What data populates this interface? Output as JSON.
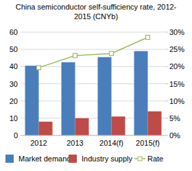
{
  "chart_data": {
    "type": "bar",
    "title": "China semiconductor self-sufficiency rate, 2012-2015 (CNYb)",
    "categories": [
      "2012",
      "2013",
      "2014(f)",
      "2015(f)"
    ],
    "series": [
      {
        "name": "Market demand",
        "color": "#4a7ebb",
        "values": [
          40.5,
          42.5,
          45.5,
          49
        ]
      },
      {
        "name": "Industry supply",
        "color": "#be4b48",
        "values": [
          8,
          10,
          11,
          14
        ]
      },
      {
        "name": "Rate",
        "type": "line",
        "axis": "y2",
        "color": "#9bbb59",
        "marker": "square",
        "values": [
          19.7,
          23.2,
          23.8,
          28.5
        ]
      }
    ],
    "ylim": [
      0,
      60
    ],
    "yticks": [
      0,
      10,
      20,
      30,
      40,
      50,
      60
    ],
    "y2lim": [
      0,
      30
    ],
    "y2ticks": [
      {
        "value": 0,
        "label": "0%"
      },
      {
        "value": 5,
        "label": "5%"
      },
      {
        "value": 10,
        "label": "10%"
      },
      {
        "value": 15,
        "label": "15%"
      },
      {
        "value": 20,
        "label": "20%"
      },
      {
        "value": 25,
        "label": "25%"
      },
      {
        "value": 30,
        "label": "30%"
      }
    ],
    "grid": true,
    "legend": "bottom"
  }
}
